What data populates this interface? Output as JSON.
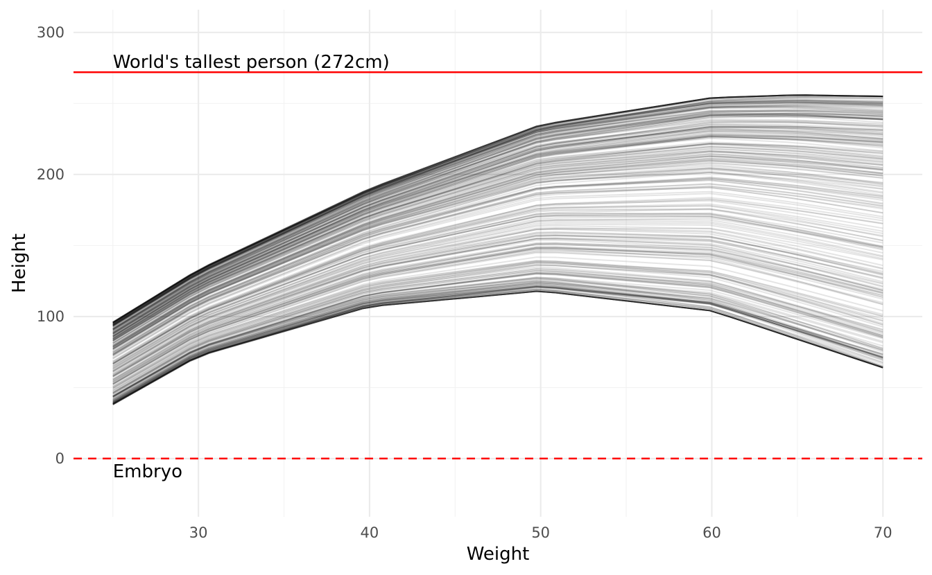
{
  "chart_data": {
    "type": "line",
    "title": "",
    "xlabel": "Weight",
    "ylabel": "Height",
    "xlim": [
      22.7,
      72.3
    ],
    "ylim": [
      -41,
      316
    ],
    "x_ticks": [
      30,
      40,
      50,
      60,
      70
    ],
    "y_ticks": [
      0,
      100,
      200,
      300
    ],
    "x_tick_labels": [
      "30",
      "40",
      "50",
      "60",
      "70"
    ],
    "y_tick_labels": [
      "0",
      "100",
      "200",
      "300"
    ],
    "grid": true,
    "legend": "none",
    "line_color": "#000000",
    "line_opacity": 0.1,
    "prior_curves": {
      "count": 300,
      "x_range": [
        25,
        70
      ],
      "envelope_upper": [
        [
          25,
          96
        ],
        [
          30,
          133
        ],
        [
          40,
          190
        ],
        [
          50,
          235
        ],
        [
          60,
          254
        ],
        [
          65,
          256
        ],
        [
          70,
          255
        ]
      ],
      "envelope_lower": [
        [
          25,
          38
        ],
        [
          30,
          72
        ],
        [
          40,
          107
        ],
        [
          50,
          118
        ],
        [
          60,
          104
        ],
        [
          70,
          64
        ]
      ],
      "representative": [
        {
          "x": [
            25,
            30,
            40,
            50,
            60,
            70
          ],
          "y": [
            88,
            125,
            180,
            225,
            247,
            245
          ]
        },
        {
          "x": [
            25,
            30,
            40,
            50,
            60,
            70
          ],
          "y": [
            70,
            104,
            160,
            200,
            220,
            220
          ]
        },
        {
          "x": [
            25,
            30,
            40,
            50,
            60,
            70
          ],
          "y": [
            62,
            95,
            140,
            165,
            175,
            170
          ]
        },
        {
          "x": [
            25,
            30,
            40,
            50,
            60,
            70
          ],
          "y": [
            55,
            85,
            125,
            140,
            135,
            115
          ]
        },
        {
          "x": [
            25,
            30,
            40,
            50,
            60,
            70
          ],
          "y": [
            42,
            72,
            107,
            118,
            105,
            66
          ]
        }
      ]
    },
    "reference_lines": [
      {
        "y": 272,
        "color": "#ff0000",
        "linetype": "solid",
        "label": "World's tallest person (272cm)",
        "label_x": 25
      },
      {
        "y": 0,
        "color": "#ff0000",
        "linetype": "dashed",
        "label": "Embryo",
        "label_x": 25
      }
    ]
  }
}
